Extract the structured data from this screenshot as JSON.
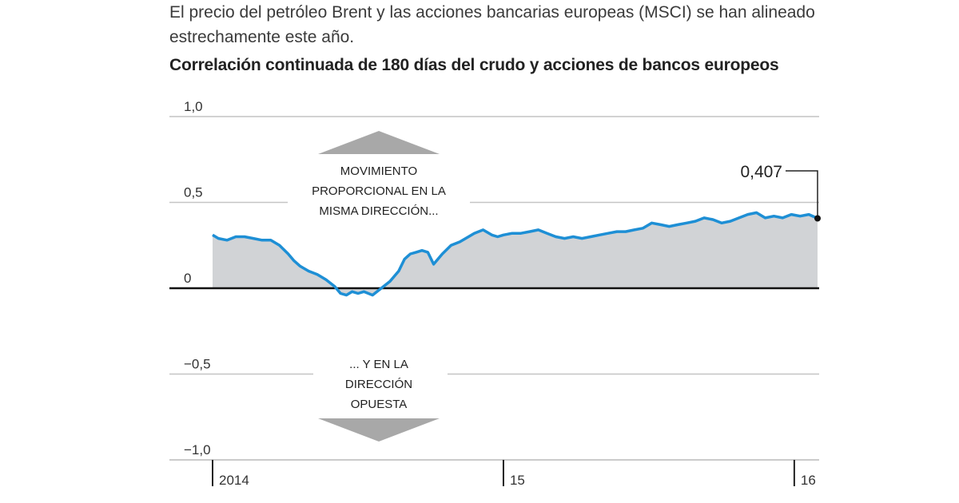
{
  "intro_text": "El precio del petróleo Brent y las acciones bancarias europeas (MSCI) se han alineado estrechamente este año.",
  "chart_data": {
    "type": "area",
    "title": "Correlación continuada de 180 días del crudo y acciones de bancos europeos",
    "xlabel": "",
    "ylabel": "",
    "ylim": [
      -1.0,
      1.0
    ],
    "xlim": [
      2014.0,
      2016.08
    ],
    "yticks": [
      {
        "value": 1.0,
        "label": "1,0"
      },
      {
        "value": 0.5,
        "label": "0,5"
      },
      {
        "value": 0,
        "label": "0"
      },
      {
        "value": -0.5,
        "label": "−0,5"
      },
      {
        "value": -1.0,
        "label": "−1,0"
      }
    ],
    "xticks": [
      {
        "value": 2014.0,
        "label": "2014"
      },
      {
        "value": 2015.0,
        "label": "15"
      },
      {
        "value": 2016.0,
        "label": "16"
      }
    ],
    "grid": true,
    "colors": {
      "line": "#1e8fd5",
      "fill": "#d1d3d6",
      "grid": "#c4c4c4",
      "zero": "#111111",
      "arrow": "#a8a8a8"
    },
    "series": [
      {
        "x": [
          2014.0,
          2014.02,
          2014.05,
          2014.08,
          2014.11,
          2014.14,
          2014.17,
          2014.2,
          2014.23,
          2014.26,
          2014.28,
          2014.3,
          2014.33,
          2014.36,
          2014.39,
          2014.42,
          2014.44,
          2014.46,
          2014.48,
          2014.5,
          2014.52,
          2014.55,
          2014.58,
          2014.61,
          2014.64,
          2014.66,
          2014.68,
          2014.7,
          2014.72,
          2014.74,
          2014.76,
          2014.79,
          2014.82,
          2014.85,
          2014.88,
          2014.9,
          2014.93,
          2014.96,
          2014.98,
          2015.0,
          2015.03,
          2015.06,
          2015.09,
          2015.12,
          2015.15,
          2015.18,
          2015.21,
          2015.24,
          2015.27,
          2015.3,
          2015.33,
          2015.36,
          2015.39,
          2015.42,
          2015.45,
          2015.48,
          2015.51,
          2015.54,
          2015.57,
          2015.6,
          2015.63,
          2015.66,
          2015.69,
          2015.72,
          2015.75,
          2015.78,
          2015.81,
          2015.84,
          2015.87,
          2015.9,
          2015.93,
          2015.96,
          2015.99,
          2016.02,
          2016.05,
          2016.08
        ],
        "values": [
          0.31,
          0.29,
          0.28,
          0.3,
          0.3,
          0.29,
          0.28,
          0.28,
          0.25,
          0.2,
          0.16,
          0.13,
          0.1,
          0.08,
          0.05,
          0.01,
          -0.03,
          -0.04,
          -0.02,
          -0.03,
          -0.02,
          -0.04,
          0.0,
          0.04,
          0.1,
          0.17,
          0.2,
          0.21,
          0.22,
          0.21,
          0.14,
          0.2,
          0.25,
          0.27,
          0.3,
          0.32,
          0.34,
          0.31,
          0.3,
          0.31,
          0.32,
          0.32,
          0.33,
          0.34,
          0.32,
          0.3,
          0.29,
          0.3,
          0.29,
          0.3,
          0.31,
          0.32,
          0.33,
          0.33,
          0.34,
          0.35,
          0.38,
          0.37,
          0.36,
          0.37,
          0.38,
          0.39,
          0.41,
          0.4,
          0.38,
          0.39,
          0.41,
          0.43,
          0.44,
          0.41,
          0.42,
          0.41,
          0.43,
          0.42,
          0.43,
          0.407
        ]
      }
    ],
    "last_value_label": "0,407",
    "annotations": {
      "upper": [
        "MOVIMIENTO",
        "PROPORCIONAL EN LA",
        "MISMA DIRECCIÓN..."
      ],
      "lower": [
        "... Y EN LA",
        "DIRECCIÓN",
        "OPUESTA"
      ]
    }
  }
}
